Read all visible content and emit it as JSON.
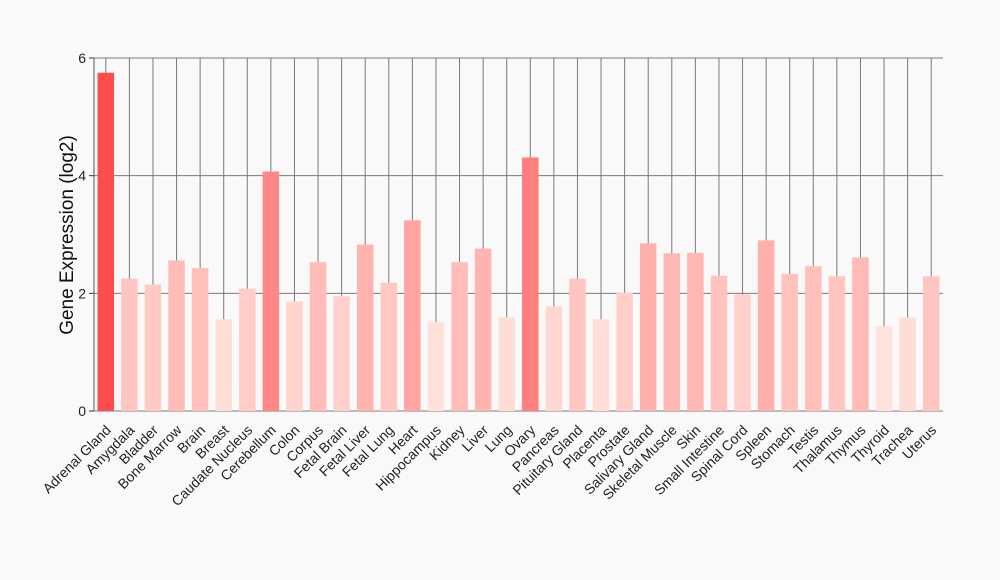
{
  "chart_data": {
    "type": "bar",
    "title": "",
    "xlabel": "",
    "ylabel": "Gene Expression (log2)",
    "ylim": [
      0,
      6
    ],
    "yticks": [
      0,
      2,
      4,
      6
    ],
    "grid": true,
    "categories": [
      "Adrenal Gland",
      "Amygdala",
      "Bladder",
      "Bone Marrow",
      "Brain",
      "Breast",
      "Caudate Nucleus",
      "Cerebellum",
      "Colon",
      "Corpus",
      "Fetal Brain",
      "Fetal Liver",
      "Fetal Lung",
      "Heart",
      "Hippocampus",
      "Kidney",
      "Liver",
      "Lung",
      "Ovary",
      "Pancreas",
      "Pituitary Gland",
      "Placenta",
      "Prostate",
      "Salivary Gland",
      "Skeletal Muscle",
      "Skin",
      "Small Intestine",
      "Spinal Cord",
      "Spleen",
      "Stomach",
      "Testis",
      "Thalamus",
      "Thymus",
      "Thyroid",
      "Trachea",
      "Uterus"
    ],
    "values": [
      5.75,
      2.25,
      2.15,
      2.56,
      2.43,
      1.56,
      2.08,
      4.07,
      1.86,
      2.53,
      1.95,
      2.83,
      2.18,
      3.24,
      1.51,
      2.53,
      2.76,
      1.59,
      4.31,
      1.78,
      2.25,
      1.56,
      2.01,
      2.85,
      2.68,
      2.69,
      2.3,
      1.98,
      2.9,
      2.33,
      2.46,
      2.29,
      2.61,
      1.44,
      1.59,
      2.29
    ],
    "color_scale": {
      "low": "#ffe2dc",
      "high": "#ff4d4d"
    }
  }
}
